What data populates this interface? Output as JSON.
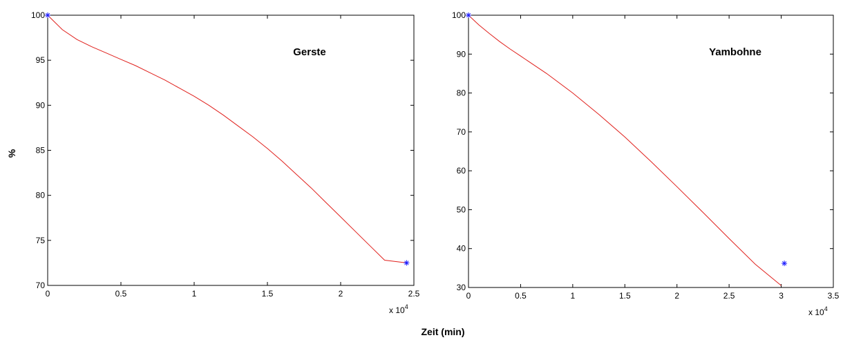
{
  "figure": {
    "ylabel": "%",
    "xlabel": "Zeit (min)"
  },
  "chart_data": [
    {
      "type": "line",
      "title": "Gerste",
      "ylabel": "%",
      "xlabel": "Zeit (min)",
      "x_multiplier_label": "x 10",
      "x_multiplier_exp": "4",
      "xlim": [
        0,
        2.5
      ],
      "ylim": [
        70,
        100
      ],
      "xticks": [
        "0",
        "0.5",
        "1",
        "1.5",
        "2",
        "2.5"
      ],
      "yticks": [
        "70",
        "75",
        "80",
        "85",
        "90",
        "95",
        "100"
      ],
      "series": [
        {
          "style": "line",
          "color": "#e0201c",
          "x": [
            0,
            0.1,
            0.2,
            0.3,
            0.4,
            0.5,
            0.6,
            0.7,
            0.8,
            0.9,
            1.0,
            1.1,
            1.2,
            1.3,
            1.4,
            1.5,
            1.6,
            1.7,
            1.8,
            1.9,
            2.0,
            2.1,
            2.2,
            2.3,
            2.45
          ],
          "y": [
            100,
            98.4,
            97.3,
            96.5,
            95.8,
            95.1,
            94.4,
            93.6,
            92.8,
            91.9,
            91.0,
            90.0,
            88.9,
            87.7,
            86.5,
            85.2,
            83.8,
            82.3,
            80.8,
            79.2,
            77.6,
            76.0,
            74.4,
            72.8,
            72.5
          ]
        },
        {
          "style": "marker",
          "marker": "*",
          "color": "#1a1aff",
          "x": [
            0,
            2.45
          ],
          "y": [
            100,
            72.5
          ]
        }
      ]
    },
    {
      "type": "line",
      "title": "Yambohne",
      "ylabel": "",
      "xlabel": "",
      "x_multiplier_label": "x 10",
      "x_multiplier_exp": "4",
      "xlim": [
        0,
        3.5
      ],
      "ylim": [
        30,
        100
      ],
      "xticks": [
        "0",
        "0.5",
        "1",
        "1.5",
        "2",
        "2.5",
        "3",
        "3.5"
      ],
      "yticks": [
        "30",
        "40",
        "50",
        "60",
        "70",
        "80",
        "90",
        "100"
      ],
      "series": [
        {
          "style": "line",
          "color": "#e0201c",
          "x": [
            0,
            0.1,
            0.2,
            0.3,
            0.4,
            0.5,
            0.75,
            1.0,
            1.25,
            1.5,
            1.75,
            2.0,
            2.25,
            2.5,
            2.75,
            3.0
          ],
          "y": [
            100,
            97.5,
            95.3,
            93.2,
            91.3,
            89.5,
            85.0,
            80.0,
            74.5,
            68.7,
            62.4,
            55.9,
            49.3,
            42.6,
            36.0,
            30.5
          ]
        },
        {
          "style": "marker",
          "marker": "*",
          "color": "#1a1aff",
          "x": [
            0,
            3.03
          ],
          "y": [
            100,
            36.2
          ]
        }
      ]
    }
  ]
}
